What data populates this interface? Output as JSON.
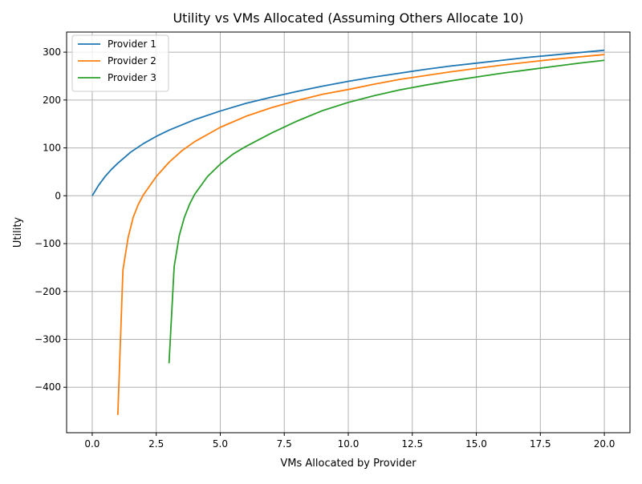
{
  "chart_data": {
    "type": "line",
    "title": "Utility vs VMs Allocated (Assuming Others Allocate 10)",
    "xlabel": "VMs Allocated by Provider",
    "ylabel": "Utility",
    "xlim": [
      -1.0,
      21.0
    ],
    "ylim": [
      -495,
      342
    ],
    "xticks": [
      0.0,
      2.5,
      5.0,
      7.5,
      10.0,
      12.5,
      15.0,
      17.5,
      20.0
    ],
    "xtick_labels": [
      "0.0",
      "2.5",
      "5.0",
      "7.5",
      "10.0",
      "12.5",
      "15.0",
      "17.5",
      "20.0"
    ],
    "yticks": [
      -400,
      -300,
      -200,
      -100,
      0,
      100,
      200,
      300
    ],
    "ytick_labels": [
      "−400",
      "−300",
      "−200",
      "−100",
      "0",
      "100",
      "200",
      "300"
    ],
    "grid": true,
    "legend_position": "upper-left",
    "series": [
      {
        "name": "Provider 1",
        "color": "#1f77b4",
        "x": [
          0,
          0.25,
          0.5,
          0.75,
          1.0,
          1.5,
          2.0,
          2.5,
          3.0,
          4.0,
          5.0,
          6.0,
          7.0,
          8.0,
          9.0,
          10.0,
          11.0,
          12.0,
          13.0,
          14.0,
          15.0,
          16.0,
          17.0,
          18.0,
          19.0,
          20.0
        ],
        "y": [
          0,
          22,
          40,
          55,
          68,
          91,
          109,
          124,
          137,
          159,
          177,
          193,
          206,
          218,
          229,
          239,
          248,
          256,
          264,
          271,
          277,
          283,
          289,
          294,
          299,
          304
        ]
      },
      {
        "name": "Provider 2",
        "color": "#ff7f0e",
        "x": [
          1.0,
          1.2,
          1.4,
          1.6,
          1.8,
          2.0,
          2.5,
          3.0,
          3.5,
          4.0,
          5.0,
          6.0,
          7.0,
          8.0,
          9.0,
          10.0,
          11.0,
          12.0,
          13.0,
          14.0,
          15.0,
          16.0,
          17.0,
          18.0,
          19.0,
          20.0
        ],
        "y": [
          -458,
          -155,
          -88,
          -45,
          -18,
          2,
          40,
          70,
          94,
          113,
          143,
          166,
          184,
          199,
          212,
          222,
          233,
          243,
          251,
          259,
          266,
          273,
          279,
          285,
          290,
          295
        ]
      },
      {
        "name": "Provider 3",
        "color": "#2ca02c",
        "x": [
          3.0,
          3.2,
          3.4,
          3.6,
          3.8,
          4.0,
          4.5,
          5.0,
          5.5,
          6.0,
          7.0,
          8.0,
          9.0,
          10.0,
          11.0,
          12.0,
          13.0,
          14.0,
          15.0,
          16.0,
          17.0,
          18.0,
          19.0,
          20.0
        ],
        "y": [
          -350,
          -148,
          -83,
          -45,
          -18,
          3,
          40,
          66,
          87,
          103,
          131,
          156,
          178,
          195,
          209,
          221,
          231,
          240,
          248,
          256,
          263,
          270,
          277,
          283
        ]
      }
    ]
  }
}
